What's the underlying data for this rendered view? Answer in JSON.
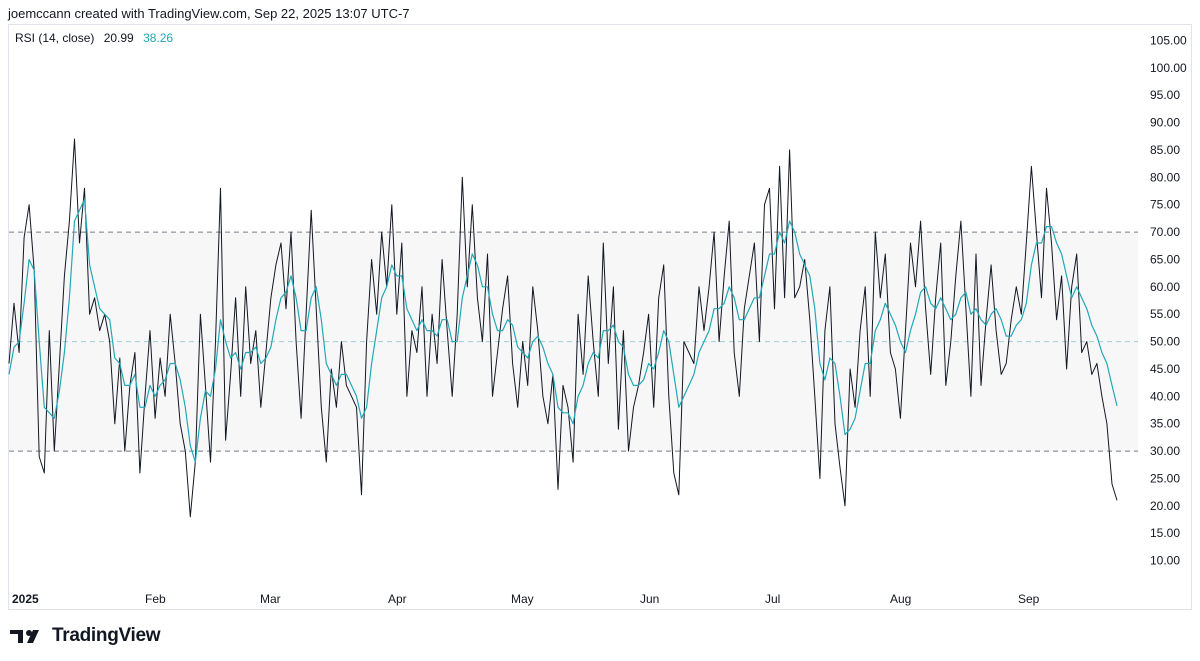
{
  "header": {
    "credit": "joemccann created with TradingView.com, Sep 22, 2025 13:07 UTC-7"
  },
  "legend": {
    "indicator": "RSI (14, close)",
    "rsi_value": "20.99",
    "ma_value": "38.26",
    "rsi_color": "#131722",
    "ma_color": "#22a8b8"
  },
  "footer": {
    "brand": "TradingView",
    "logo_icon": "tradingview-logo-icon"
  },
  "chart_data": {
    "type": "line",
    "title": "RSI (14, close)",
    "ylim": [
      5,
      108
    ],
    "y_ticks": [
      "105.00",
      "100.00",
      "95.00",
      "90.00",
      "85.00",
      "80.00",
      "75.00",
      "70.00",
      "65.00",
      "60.00",
      "55.00",
      "50.00",
      "45.00",
      "40.00",
      "35.00",
      "30.00",
      "25.00",
      "20.00",
      "15.00",
      "10.00"
    ],
    "x_labels": [
      "2025",
      "Feb",
      "Mar",
      "Apr",
      "May",
      "Jun",
      "Jul",
      "Aug",
      "Sep"
    ],
    "bands": {
      "upper": 70,
      "middle": 50,
      "lower": 30
    },
    "series": [
      {
        "name": "RSI",
        "color": "#131722",
        "values": [
          46,
          57,
          48,
          69,
          75,
          63,
          29,
          26,
          52,
          30,
          46,
          62,
          72,
          87,
          68,
          78,
          55,
          58,
          52,
          55,
          50,
          35,
          47,
          30,
          42,
          48,
          26,
          40,
          52,
          36,
          47,
          40,
          55,
          46,
          35,
          30,
          18,
          28,
          55,
          42,
          28,
          50,
          78,
          32,
          44,
          58,
          40,
          60,
          46,
          52,
          38,
          48,
          58,
          64,
          68,
          56,
          70,
          50,
          36,
          55,
          74,
          56,
          38,
          28,
          45,
          38,
          50,
          42,
          40,
          38,
          22,
          50,
          65,
          55,
          70,
          60,
          75,
          55,
          68,
          40,
          52,
          48,
          60,
          40,
          55,
          46,
          65,
          52,
          40,
          55,
          80,
          60,
          75,
          58,
          50,
          66,
          40,
          48,
          56,
          62,
          46,
          38,
          50,
          42,
          60,
          52,
          40,
          35,
          44,
          23,
          42,
          38,
          28,
          55,
          44,
          62,
          50,
          40,
          68,
          46,
          60,
          34,
          52,
          30,
          38,
          42,
          48,
          55,
          38,
          58,
          64,
          40,
          26,
          22,
          50,
          48,
          46,
          60,
          52,
          60,
          70,
          50,
          62,
          72,
          48,
          40,
          56,
          62,
          68,
          50,
          75,
          78,
          56,
          82,
          58,
          85,
          58,
          60,
          65,
          54,
          40,
          25,
          52,
          60,
          35,
          27,
          20,
          45,
          38,
          52,
          60,
          40,
          70,
          58,
          66,
          48,
          45,
          36,
          52,
          68,
          60,
          72,
          56,
          44,
          58,
          68,
          42,
          50,
          62,
          72,
          56,
          40,
          66,
          42,
          54,
          64,
          52,
          44,
          46,
          54,
          60,
          55,
          68,
          82,
          70,
          58,
          78,
          68,
          54,
          62,
          45,
          60,
          66,
          48,
          50,
          44,
          46,
          40,
          35,
          24,
          20.99
        ]
      },
      {
        "name": "RSI-based MA",
        "color": "#22a8b8",
        "values": [
          44,
          49,
          50,
          57,
          65,
          63,
          50,
          38,
          37,
          36,
          41,
          48,
          58,
          72,
          74,
          76,
          64,
          60,
          56,
          55,
          54,
          47,
          46,
          42,
          42,
          44,
          38,
          38,
          42,
          40,
          42,
          43,
          46,
          46,
          43,
          38,
          31,
          28,
          36,
          41,
          40,
          45,
          54,
          50,
          47,
          48,
          45,
          48,
          48,
          49,
          46,
          47,
          49,
          54,
          58,
          59,
          62,
          58,
          52,
          52,
          58,
          60,
          54,
          46,
          44,
          42,
          44,
          44,
          42,
          40,
          36,
          38,
          46,
          52,
          58,
          60,
          64,
          62,
          62,
          56,
          54,
          52,
          54,
          52,
          52,
          51,
          54,
          54,
          50,
          50,
          58,
          62,
          66,
          64,
          60,
          60,
          55,
          52,
          52,
          54,
          53,
          49,
          48,
          47,
          50,
          51,
          49,
          46,
          44,
          38,
          37,
          37,
          35,
          40,
          42,
          46,
          48,
          47,
          52,
          52,
          53,
          50,
          49,
          44,
          42,
          42,
          43,
          46,
          45,
          48,
          52,
          50,
          44,
          38,
          40,
          42,
          44,
          48,
          50,
          52,
          56,
          56,
          57,
          60,
          58,
          54,
          54,
          56,
          58,
          58,
          62,
          66,
          66,
          70,
          68,
          72,
          70,
          66,
          64,
          62,
          56,
          46,
          43,
          47,
          46,
          40,
          33,
          34,
          36,
          41,
          46,
          46,
          52,
          54,
          57,
          55,
          53,
          50,
          48,
          52,
          55,
          59,
          60,
          57,
          56,
          58,
          56,
          54,
          55,
          58,
          59,
          55,
          56,
          54,
          53,
          55,
          56,
          54,
          51,
          51,
          53,
          54,
          57,
          64,
          68,
          68,
          71,
          71,
          68,
          66,
          62,
          58,
          60,
          58,
          56,
          53,
          51,
          48,
          46,
          42,
          38.26
        ]
      }
    ]
  }
}
